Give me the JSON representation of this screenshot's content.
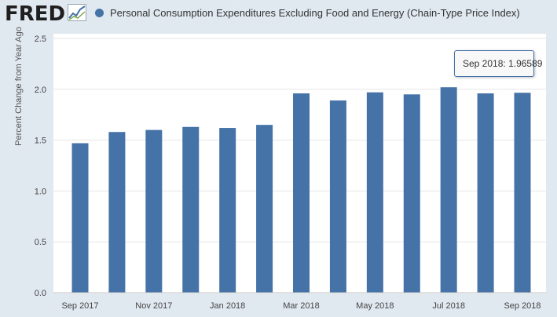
{
  "header": {
    "logo_text": "FRED",
    "logo_icon": "trend-line-icon",
    "series_title": "Personal Consumption Expenditures Excluding Food and Energy (Chain-Type Price Index)"
  },
  "colors": {
    "bar": "#4572a7",
    "background": "#e1e9f0",
    "plot": "#ffffff",
    "grid": "#e6e6e6"
  },
  "tooltip": {
    "date": "Sep 2018",
    "value": "1.96589"
  },
  "chart_data": {
    "type": "bar",
    "ylabel": "Percent Change from Year Ago",
    "ylim": [
      0,
      2.5
    ],
    "yticks": [
      0,
      0.5,
      1.0,
      1.5,
      2.0,
      2.5
    ],
    "ytick_labels": [
      "0.0",
      "0.5",
      "1.0",
      "1.5",
      "2.0",
      "2.5"
    ],
    "grid": true,
    "categories": [
      "Sep 2017",
      "Oct 2017",
      "Nov 2017",
      "Dec 2017",
      "Jan 2018",
      "Feb 2018",
      "Mar 2018",
      "Apr 2018",
      "May 2018",
      "Jun 2018",
      "Jul 2018",
      "Aug 2018",
      "Sep 2018"
    ],
    "xtick_labels": [
      "Sep 2017",
      "",
      "Nov 2017",
      "",
      "Jan 2018",
      "",
      "Mar 2018",
      "",
      "May 2018",
      "",
      "Jul 2018",
      "",
      "Sep 2018"
    ],
    "series": [
      {
        "values": [
          1.47,
          1.58,
          1.6,
          1.63,
          1.62,
          1.65,
          1.96,
          1.89,
          1.97,
          1.95,
          2.02,
          1.96,
          1.96589
        ]
      }
    ]
  }
}
